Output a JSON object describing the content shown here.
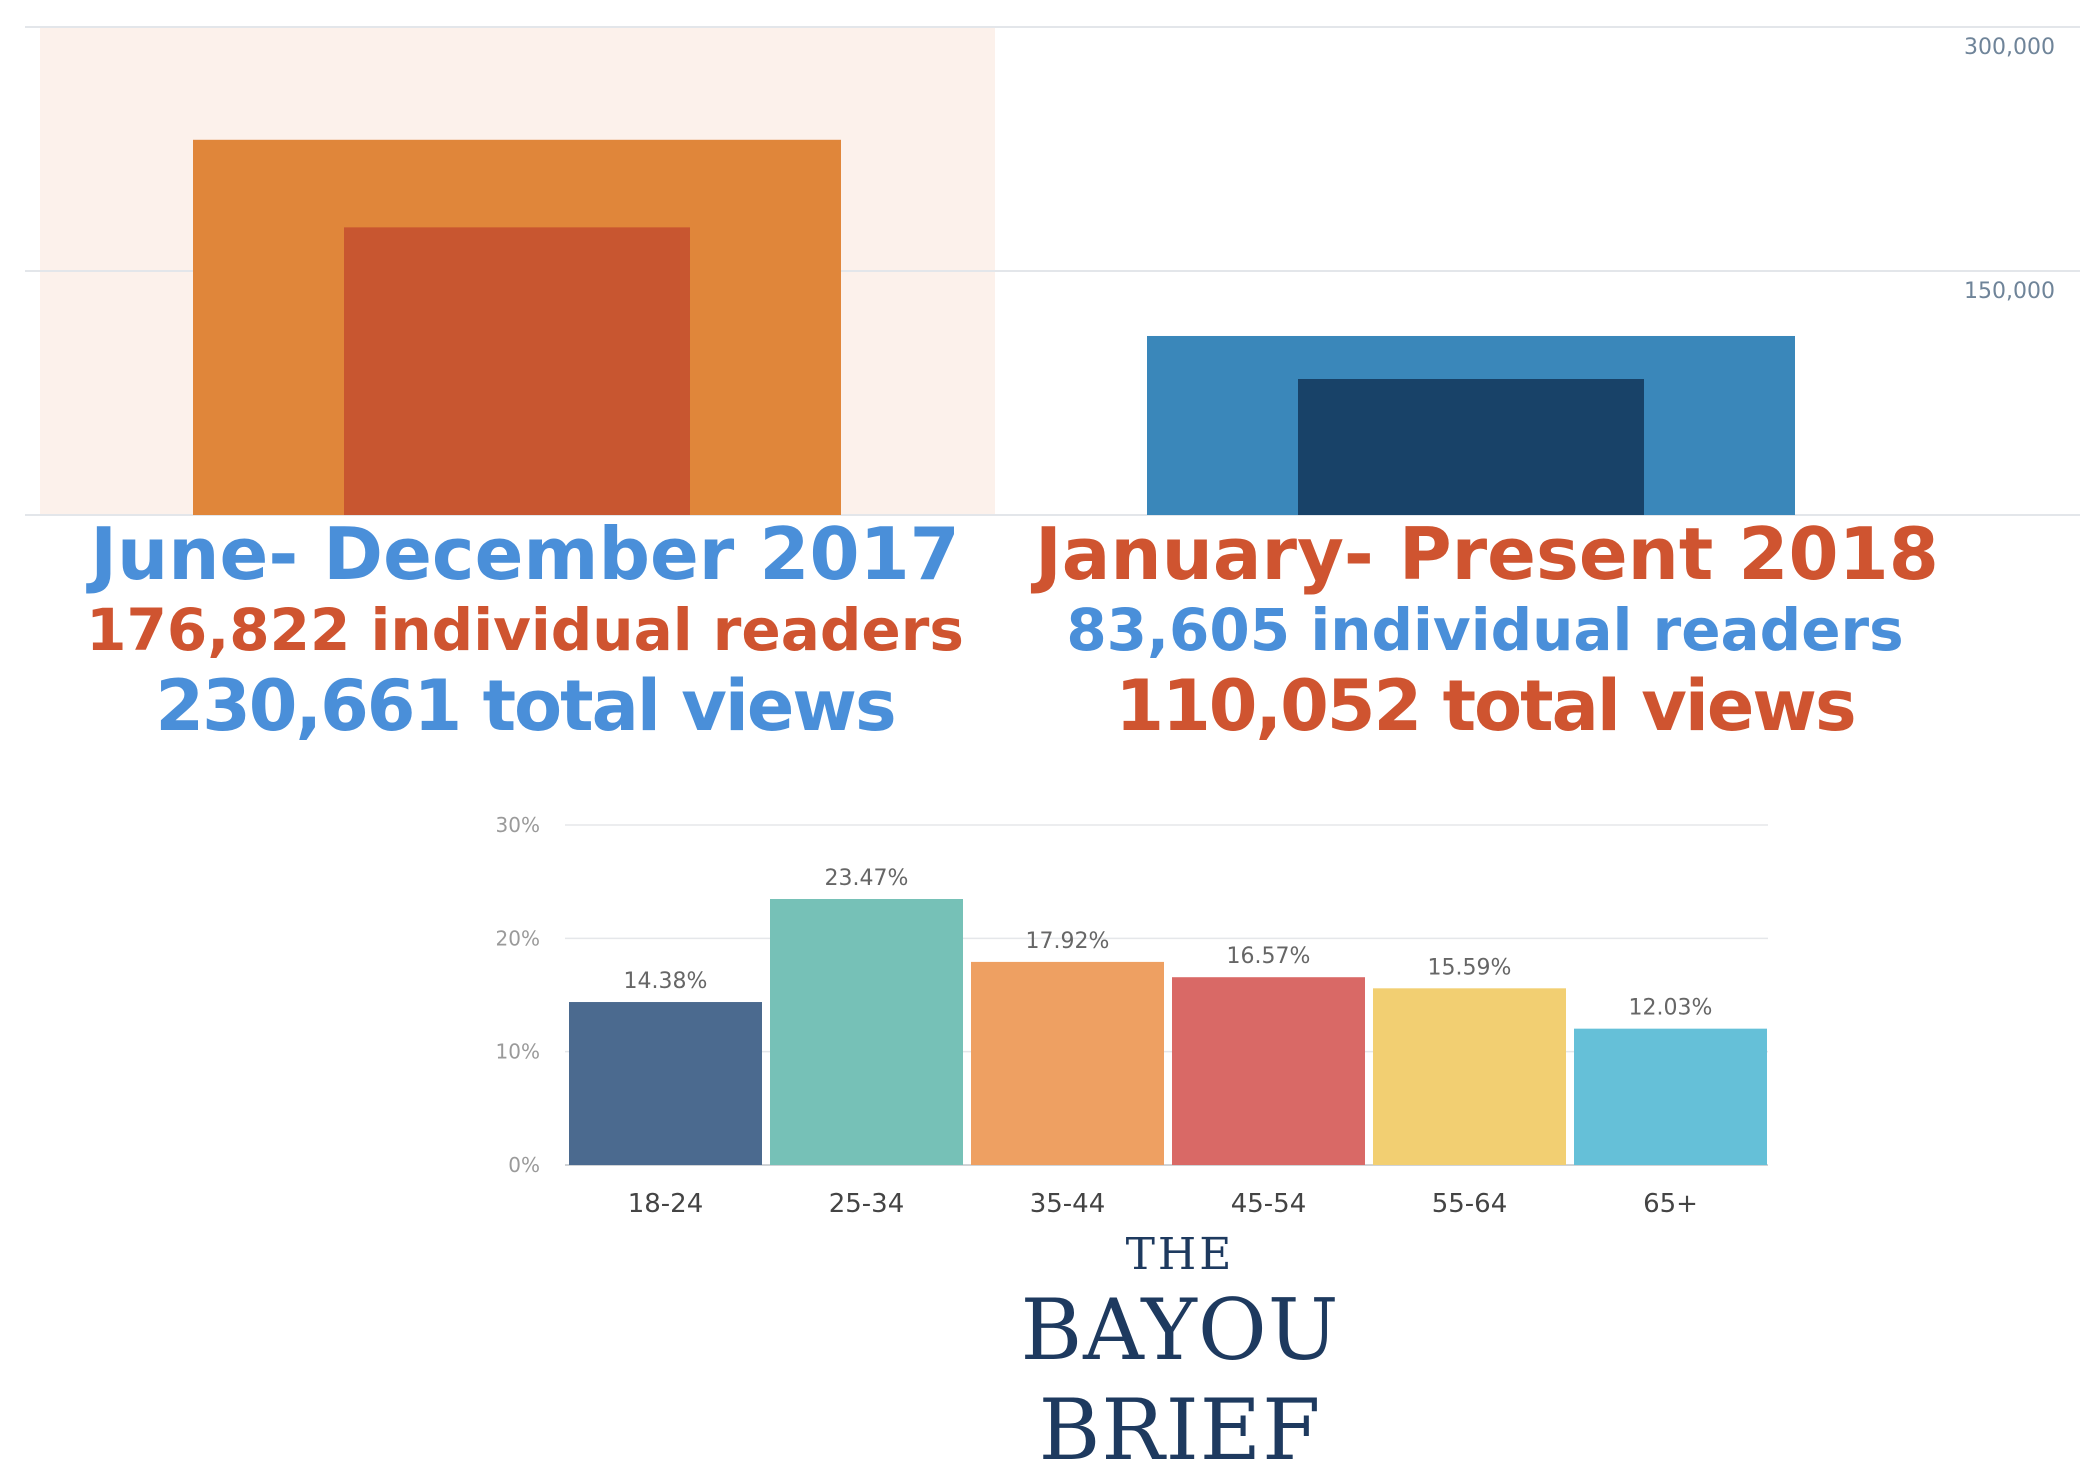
{
  "chart_data": [
    {
      "type": "bar",
      "title": "",
      "xlabel": "",
      "ylabel": "",
      "ylim": [
        0,
        300000
      ],
      "yticks": [
        "150,000",
        "300,000"
      ],
      "grid": true,
      "categories": [
        "June- December 2017",
        "January- Present 2018"
      ],
      "series": [
        {
          "name": "total views",
          "values": [
            230661,
            110052
          ]
        },
        {
          "name": "individual readers",
          "values": [
            176822,
            83605
          ]
        }
      ],
      "colors": {
        "2017_views": "#e0863a",
        "2017_readers": "#c85630",
        "2018_views": "#3a87ba",
        "2018_readers": "#184268",
        "highlight": "#fcf1eb"
      }
    },
    {
      "type": "bar",
      "title": "",
      "xlabel": "",
      "ylabel": "",
      "ylim": [
        0,
        30
      ],
      "yticks": [
        "0%",
        "10%",
        "20%",
        "30%"
      ],
      "grid": true,
      "categories": [
        "18-24",
        "25-34",
        "35-44",
        "45-54",
        "55-64",
        "65+"
      ],
      "values": [
        14.38,
        23.47,
        17.92,
        16.57,
        15.59,
        12.03
      ],
      "labels": [
        "14.38%",
        "23.47%",
        "17.92%",
        "16.57%",
        "15.59%",
        "12.03%"
      ],
      "colors": [
        "#4b6a8f",
        "#76c1b7",
        "#eea062",
        "#d96966",
        "#f2cf72",
        "#65c0d8"
      ]
    }
  ],
  "summaries": {
    "p2017": {
      "title": "June- December 2017",
      "readers": "176,822 individual readers",
      "views": "230,661 total views"
    },
    "p2018": {
      "title": "January- Present 2018",
      "readers": "83,605 individual readers",
      "views": "110,052 total views"
    }
  },
  "brand": {
    "the": "THE",
    "name": "BAYOU BRIEF"
  }
}
